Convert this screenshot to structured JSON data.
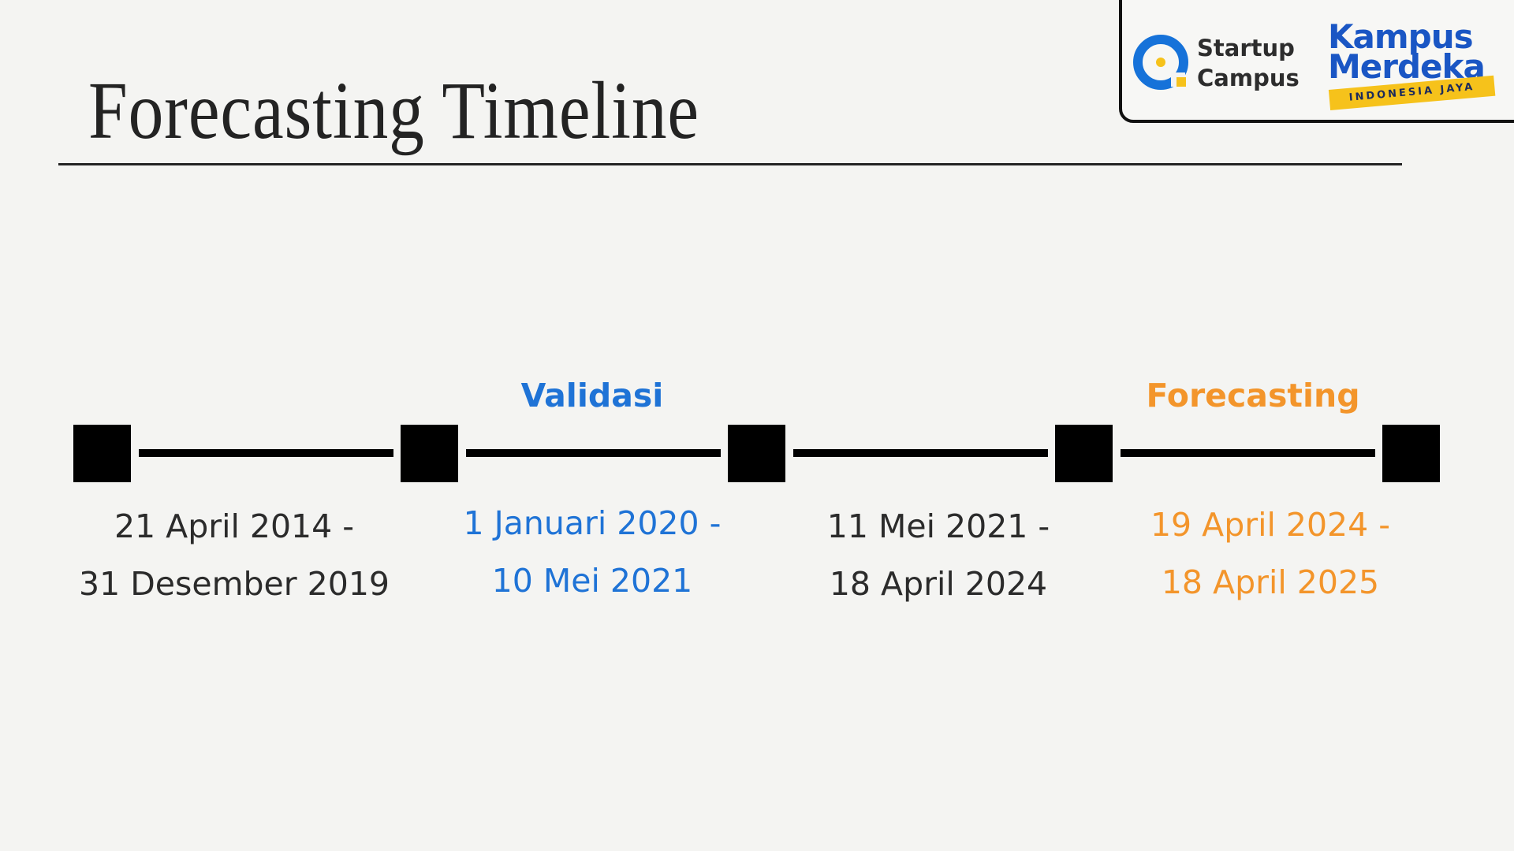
{
  "title": "Forecasting Timeline",
  "logos": {
    "startup_campus": {
      "line1": "Startup",
      "line2": "Campus"
    },
    "kampus_merdeka": {
      "line1": "Kampus",
      "line2": "Merdeka",
      "banner": "INDONESIA JAYA"
    }
  },
  "colors": {
    "text_dark": "#2b2b2b",
    "validation_blue": "#1f73d6",
    "forecast_orange": "#f3952b",
    "startup_blue": "#1672d9",
    "startup_yellow": "#f6c21b",
    "kampus_blue": "#1a56c4"
  },
  "timeline": {
    "phase_labels": {
      "validation": "Validasi",
      "forecasting": "Forecasting"
    },
    "periods": [
      {
        "line1": "21 April 2014 -",
        "line2": "31 Desember 2019",
        "color": "#2b2b2b"
      },
      {
        "line1": "1 Januari 2020 -",
        "line2": "10 Mei 2021",
        "color": "#1f73d6"
      },
      {
        "line1": "11 Mei 2021 -",
        "line2": "18 April 2024",
        "color": "#2b2b2b"
      },
      {
        "line1": "19 April 2024 -",
        "line2": "18 April 2025",
        "color": "#f3952b"
      }
    ]
  }
}
